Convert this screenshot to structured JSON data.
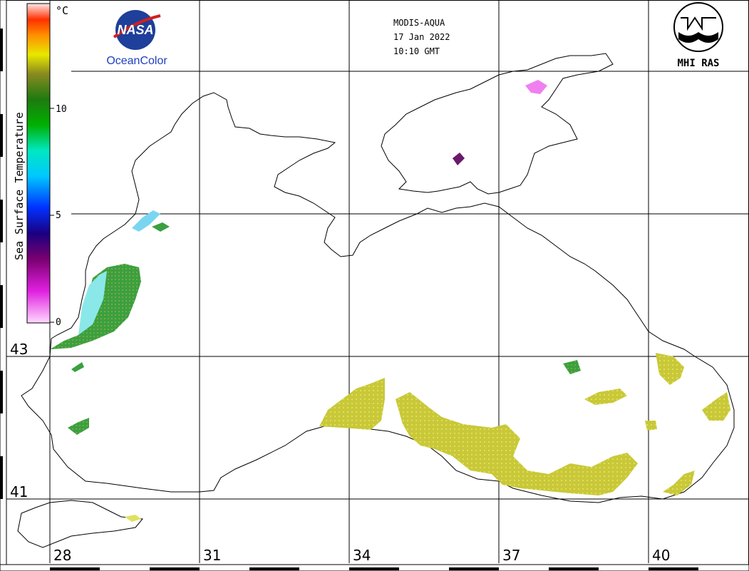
{
  "header": {
    "sensor": "MODIS-AQUA",
    "date": "17 Jan 2022",
    "time": "10:10 GMT"
  },
  "logos": {
    "nasa_text": "NASA",
    "oceancolor": "OceanColor",
    "mhi": "MHI RAS"
  },
  "colorbar": {
    "title": "Sea Surface Temperature",
    "unit": "°C",
    "ticks": [
      "0",
      "5",
      "10"
    ],
    "colors": [
      "#ffd8ff",
      "#e020e0",
      "#7a0070",
      "#1a0080",
      "#0030ff",
      "#00c8ff",
      "#00e8c0",
      "#00b000",
      "#1e7a10",
      "#8a8a20",
      "#e8e800",
      "#ff9000",
      "#ff3000",
      "#ffc8c8",
      "#ffffff"
    ]
  },
  "lat_labels": [
    "43",
    "41"
  ],
  "lon_labels": [
    "28",
    "31",
    "34",
    "37",
    "40"
  ]
}
